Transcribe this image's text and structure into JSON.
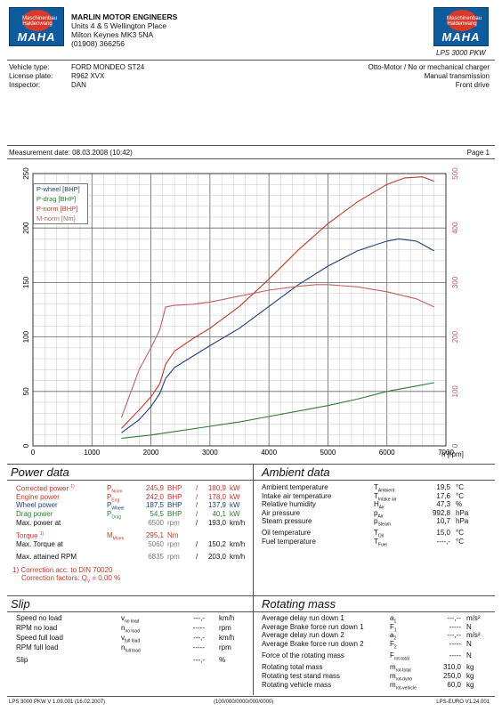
{
  "header": {
    "company": "MARLIN MOTOR ENGINEERS",
    "addr1": "Units 4 & 5 Wellington Place",
    "addr2": "Milton Keynes MK3 5NA",
    "phone": "(01908) 366256",
    "logo_left": "MAHA",
    "logo_right": "MAHA",
    "seal_text": "Maschinenbau Haldenwang",
    "model": "LPS 3000 PKW"
  },
  "vehicle": {
    "type_label": "Vehicle type:",
    "type": "FORD MONDEO ST24",
    "plate_label": "License plate:",
    "plate": "R962 XVX",
    "inspector_label": "Inspector:",
    "inspector": "DAN",
    "engine": "Otto-Motor / No or mechanical charger",
    "transmission": "Manual transmission",
    "drive": "Front drive"
  },
  "measurement": {
    "date": "Measurement date: 08.03.2008 (10:42)",
    "page": "Page 1"
  },
  "chart_data": {
    "type": "line",
    "x_label": "n [rpm]",
    "xlim": [
      0,
      7000
    ],
    "x_ticks": [
      0,
      1000,
      2000,
      3000,
      4000,
      5000,
      6000,
      7000
    ],
    "ylim_left": [
      0,
      250
    ],
    "y_ticks_left": [
      0,
      50,
      100,
      150,
      200,
      250
    ],
    "ylim_right": [
      0,
      500
    ],
    "y_ticks_right": [
      0,
      100,
      200,
      300,
      400,
      500
    ],
    "grid": true,
    "legend_position": "top-left",
    "series": [
      {
        "name": "P-wheel [BHP]",
        "color": "#1f3f7a",
        "axis": "left",
        "x": [
          1500,
          1800,
          2000,
          2150,
          2250,
          2400,
          2700,
          3000,
          3500,
          4000,
          4500,
          5000,
          5500,
          6000,
          6200,
          6500,
          6800
        ],
        "y": [
          12,
          24,
          36,
          48,
          62,
          72,
          82,
          92,
          108,
          128,
          148,
          165,
          179,
          188,
          190,
          188,
          179
        ]
      },
      {
        "name": "P-drag [BHP]",
        "color": "#2e7d32",
        "axis": "left",
        "x": [
          1500,
          2000,
          2500,
          3000,
          3500,
          4000,
          4500,
          5000,
          5500,
          6000,
          6500,
          6800
        ],
        "y": [
          7,
          10,
          14,
          18,
          22,
          27,
          32,
          37,
          43,
          50,
          55,
          58
        ]
      },
      {
        "name": "P-norm [BHP]",
        "color": "#c0392b",
        "axis": "left",
        "x": [
          1500,
          1800,
          2000,
          2150,
          2250,
          2400,
          2700,
          3000,
          3500,
          4000,
          4500,
          5000,
          5500,
          6000,
          6300,
          6600,
          6800
        ],
        "y": [
          16,
          33,
          45,
          57,
          75,
          87,
          98,
          108,
          128,
          153,
          180,
          204,
          224,
          240,
          246,
          247,
          243
        ]
      },
      {
        "name": "M-norm [Nm]",
        "color": "#c06060",
        "axis": "right",
        "x": [
          1500,
          1800,
          2000,
          2150,
          2250,
          2400,
          2700,
          3000,
          3500,
          4000,
          4500,
          4800,
          5000,
          5500,
          6000,
          6500,
          6800
        ],
        "y": [
          52,
          140,
          180,
          213,
          255,
          258,
          260,
          264,
          275,
          286,
          293,
          296,
          296,
          292,
          283,
          270,
          255
        ]
      }
    ]
  },
  "power_data": {
    "title": "Power data",
    "rows": [
      {
        "label": "Corrected power",
        "sup": "1)",
        "sym": "P",
        "sub": "Norm",
        "v1": "245,9",
        "u1": "BHP",
        "v2": "180,9",
        "u2": "kW"
      },
      {
        "label": "Engine power",
        "sup": "",
        "sym": "P",
        "sub": "Eng",
        "v1": "242,0",
        "u1": "BHP",
        "v2": "178,0",
        "u2": "kW"
      },
      {
        "label": "Wheel power",
        "sup": "",
        "sym": "P",
        "sub": "Wheel",
        "v1": "187,5",
        "u1": "BHP",
        "v2": "137,9",
        "u2": "kW"
      },
      {
        "label": "Drag power",
        "sup": "",
        "sym": "P",
        "sub": "Drag",
        "v1": "54,5",
        "u1": "BHP",
        "v2": "40,1",
        "u2": "kW"
      }
    ],
    "max_power_label": "Max. power at",
    "max_power_rpm": "6500",
    "max_power_speed": "193,0",
    "torque_label": "Torque",
    "torque_sup": "1)",
    "torque_sym": "M",
    "torque_sub": "Morm",
    "torque_val": "295,1",
    "torque_unit": "Nm",
    "max_torque_label": "Max. Torque at",
    "max_torque_rpm": "5060",
    "max_torque_speed": "150,2",
    "max_rpm_label": "Max. attained RPM",
    "max_rpm": "6835",
    "max_rpm_speed": "203,0",
    "rpm_unit": "rpm",
    "kmh_unit": "km/h",
    "corr1": "1) Correction acc. to DIN 70020",
    "corr2": "Correction factors: Q",
    "corr2_sub": "V",
    "corr2_val": "= 0,00 %"
  },
  "ambient": {
    "title": "Ambient data",
    "rows": [
      {
        "label": "Ambient temperature",
        "sym": "T",
        "sub": "Ambient",
        "val": "19,5",
        "unit": "°C"
      },
      {
        "label": "Intake air temperature",
        "sym": "T",
        "sub": "Intake air",
        "val": "17,6",
        "unit": "°C"
      },
      {
        "label": "Relative humidity",
        "sym": "H",
        "sub": "Air",
        "val": "47,3",
        "unit": "%"
      },
      {
        "label": "Air pressure",
        "sym": "p",
        "sub": "Air",
        "val": "992,8",
        "unit": "hPa"
      },
      {
        "label": "Steam pressure",
        "sym": "p",
        "sub": "Steam",
        "val": "10,7",
        "unit": "hPa"
      },
      {
        "label": "Oil temperature",
        "sym": "T",
        "sub": "Oil",
        "val": "15,0",
        "unit": "°C"
      },
      {
        "label": "Fuel temperature",
        "sym": "T",
        "sub": "Fuel",
        "val": "----,-",
        "unit": "°C"
      }
    ]
  },
  "slip": {
    "title": "Slip",
    "rows": [
      {
        "label": "Speed no load",
        "sym": "v",
        "sub": "no load",
        "val": "---,-",
        "unit": "km/h"
      },
      {
        "label": "RPM no load",
        "sym": "n",
        "sub": "no load",
        "val": "-----",
        "unit": "rpm"
      },
      {
        "label": "Speed full load",
        "sym": "v",
        "sub": "full load",
        "val": "---,-",
        "unit": "km/h"
      },
      {
        "label": "RPM full load",
        "sym": "n",
        "sub": "full load",
        "val": "-----",
        "unit": "rpm"
      },
      {
        "label": "Slip",
        "sym": "",
        "sub": "",
        "val": "---,-",
        "unit": "%"
      }
    ]
  },
  "rotating": {
    "title": "Rotating mass",
    "rows": [
      {
        "label": "Average delay run down 1",
        "sym": "a",
        "sub": "1",
        "val": "---,--",
        "unit": "m/s²"
      },
      {
        "label": "Average Brake force run down 1",
        "sym": "F",
        "sub": "1",
        "val": "-----",
        "unit": "N"
      },
      {
        "label": "Average delay run down 2",
        "sym": "a",
        "sub": "2",
        "val": "---,--",
        "unit": "m/s²"
      },
      {
        "label": "Average Brake force run down 2",
        "sym": "F",
        "sub": "2",
        "val": "-----",
        "unit": "N"
      },
      {
        "label": "Force of the rotating mass",
        "sym": "F",
        "sub": "rot-total",
        "val": "-----",
        "unit": "N"
      },
      {
        "label": "Rotating total mass",
        "sym": "m",
        "sub": "rot-total",
        "val": "310,0",
        "unit": "kg"
      },
      {
        "label": "Rotating test stand mass",
        "sym": "m",
        "sub": "rot-dyno",
        "val": "250,0",
        "unit": "kg"
      },
      {
        "label": "Rotating vehicle mass",
        "sym": "m",
        "sub": "rot-vehicle",
        "val": "60,0",
        "kg": "kg",
        "unit": "kg"
      }
    ]
  },
  "footer": {
    "left": "LPS 3000 PKW V 1.09.001 (16.02.2007)",
    "center": "(100/000/0000/000/0000)",
    "right": "LPS-EURO V1.24.001"
  }
}
